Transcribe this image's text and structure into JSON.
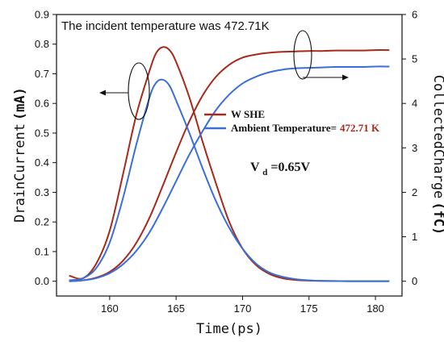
{
  "chart_data": {
    "type": "line",
    "annotation": "The incident temperature was 472.71K",
    "xlabel": "Time(ps)",
    "ylabel_left_main": "DrainCurrent",
    "ylabel_left_unit": "(mA)",
    "ylabel_right_main": "CollectedCharge",
    "ylabel_right_unit": "(fC)",
    "xlim": [
      156,
      182
    ],
    "ylim_left": [
      -0.05,
      0.9
    ],
    "ylim_right": [
      -0.3333,
      6
    ],
    "x_ticks": [
      160,
      165,
      170,
      175,
      180
    ],
    "x_tick_labels": [
      "160",
      "165",
      "170",
      "175",
      "180"
    ],
    "y_left_ticks": [
      0.0,
      0.1,
      0.2,
      0.3,
      0.4,
      0.5,
      0.6,
      0.7,
      0.8,
      0.9
    ],
    "y_left_tick_labels": [
      "0.0",
      "0.1",
      "0.2",
      "0.3",
      "0.4",
      "0.5",
      "0.6",
      "0.7",
      "0.8",
      "0.9"
    ],
    "y_right_ticks": [
      0,
      1,
      2,
      3,
      4,
      5,
      6
    ],
    "y_right_tick_labels": [
      "0",
      "1",
      "2",
      "3",
      "4",
      "5",
      "6"
    ],
    "vd_prefix": "V",
    "vd_sub": "d",
    "vd_value": "=0.65V",
    "legend": {
      "placement": "center-right",
      "entries": [
        {
          "label": "W SHE",
          "value": "",
          "color": "#a52a1a"
        },
        {
          "label": "Ambient Temperature=",
          "value": "472.71 K",
          "color": "#3a6fd8"
        }
      ],
      "value_color": "#a52a1a"
    },
    "series": [
      {
        "name": "W SHE",
        "kind": "current",
        "axis": "left",
        "color": "#a52a1a",
        "x": [
          157,
          158,
          159,
          160,
          161,
          162,
          163,
          163.5,
          164,
          164.5,
          165,
          166,
          167,
          168,
          169,
          170,
          171,
          172,
          173,
          174,
          175,
          176,
          178,
          181
        ],
        "y": [
          0.018,
          0.01,
          0.06,
          0.17,
          0.36,
          0.56,
          0.71,
          0.77,
          0.79,
          0.78,
          0.74,
          0.62,
          0.47,
          0.33,
          0.2,
          0.11,
          0.055,
          0.025,
          0.01,
          0.004,
          0.002,
          0.001,
          0.0,
          0.0
        ]
      },
      {
        "name": "W SHE",
        "kind": "charge",
        "axis": "right",
        "color": "#a52a1a",
        "x": [
          157,
          158,
          159,
          160,
          161,
          162,
          163,
          164,
          165,
          166,
          167,
          168,
          169,
          170,
          171,
          172,
          173,
          174,
          175,
          176,
          177,
          178,
          179,
          180,
          181
        ],
        "y": [
          0.0,
          0.02,
          0.08,
          0.21,
          0.46,
          0.86,
          1.43,
          2.15,
          2.9,
          3.6,
          4.18,
          4.6,
          4.87,
          5.03,
          5.1,
          5.14,
          5.16,
          5.17,
          5.18,
          5.18,
          5.19,
          5.19,
          5.19,
          5.2,
          5.2
        ]
      },
      {
        "name": "Ambient Temperature=472.71 K",
        "kind": "current",
        "axis": "left",
        "color": "#3a6fd8",
        "x": [
          157,
          158,
          159,
          160,
          161,
          162,
          163,
          163.5,
          164,
          164.5,
          165,
          166,
          167,
          168,
          169,
          170,
          171,
          172,
          173,
          174,
          175,
          176,
          178,
          181
        ],
        "y": [
          0.003,
          0.01,
          0.045,
          0.13,
          0.28,
          0.46,
          0.62,
          0.67,
          0.68,
          0.66,
          0.61,
          0.5,
          0.38,
          0.27,
          0.18,
          0.11,
          0.06,
          0.03,
          0.015,
          0.007,
          0.003,
          0.001,
          0.0,
          0.0
        ]
      },
      {
        "name": "Ambient Temperature=472.71 K",
        "kind": "charge",
        "axis": "right",
        "color": "#3a6fd8",
        "x": [
          157,
          158,
          159,
          160,
          161,
          162,
          163,
          164,
          165,
          166,
          167,
          168,
          169,
          170,
          171,
          172,
          173,
          174,
          175,
          176,
          177,
          178,
          179,
          180,
          181
        ],
        "y": [
          0.0,
          0.02,
          0.07,
          0.18,
          0.38,
          0.68,
          1.1,
          1.65,
          2.25,
          2.85,
          3.38,
          3.85,
          4.2,
          4.45,
          4.6,
          4.7,
          4.76,
          4.79,
          4.8,
          4.81,
          4.82,
          4.82,
          4.82,
          4.83,
          4.83
        ]
      }
    ]
  }
}
